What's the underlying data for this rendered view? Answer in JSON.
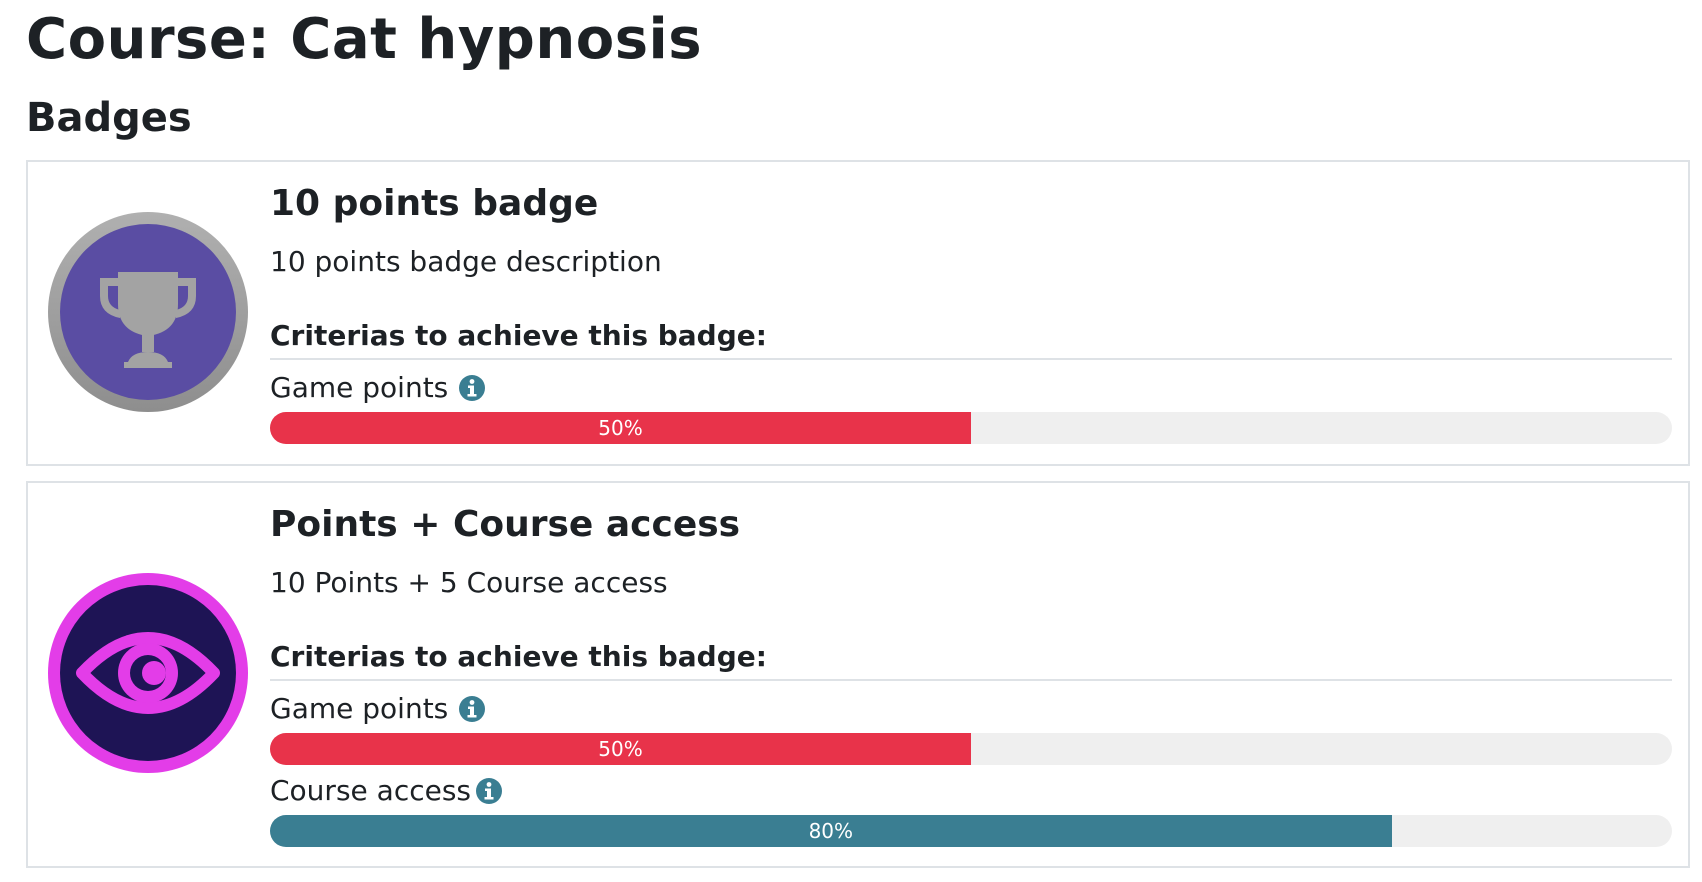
{
  "page_title": "Course: Cat hypnosis",
  "section_title": "Badges",
  "badges": [
    {
      "name": "10 points badge",
      "description": "10 points badge description",
      "icon": "trophy-icon",
      "criteria_heading": "Criterias to achieve this badge:",
      "criteria": [
        {
          "label": "Game points",
          "progress": 50,
          "progress_label": "50%",
          "color": "#e8334a"
        }
      ]
    },
    {
      "name": "Points + Course access",
      "description": "10 Points + 5 Course access",
      "icon": "eye-icon",
      "criteria_heading": "Criterias to achieve this badge:",
      "criteria": [
        {
          "label": "Game points",
          "progress": 50,
          "progress_label": "50%",
          "color": "#e8334a"
        },
        {
          "label": "Course access",
          "progress": 80,
          "progress_label": "80%",
          "color": "#3a7e92"
        }
      ]
    }
  ],
  "colors": {
    "trophy_badge_bg": "#5a4da3",
    "trophy_badge_ring": "#a0a0a0",
    "eye_badge_bg": "#1e1455",
    "eye_badge_ring": "#e33de8",
    "info_icon": "#3a7e92"
  }
}
